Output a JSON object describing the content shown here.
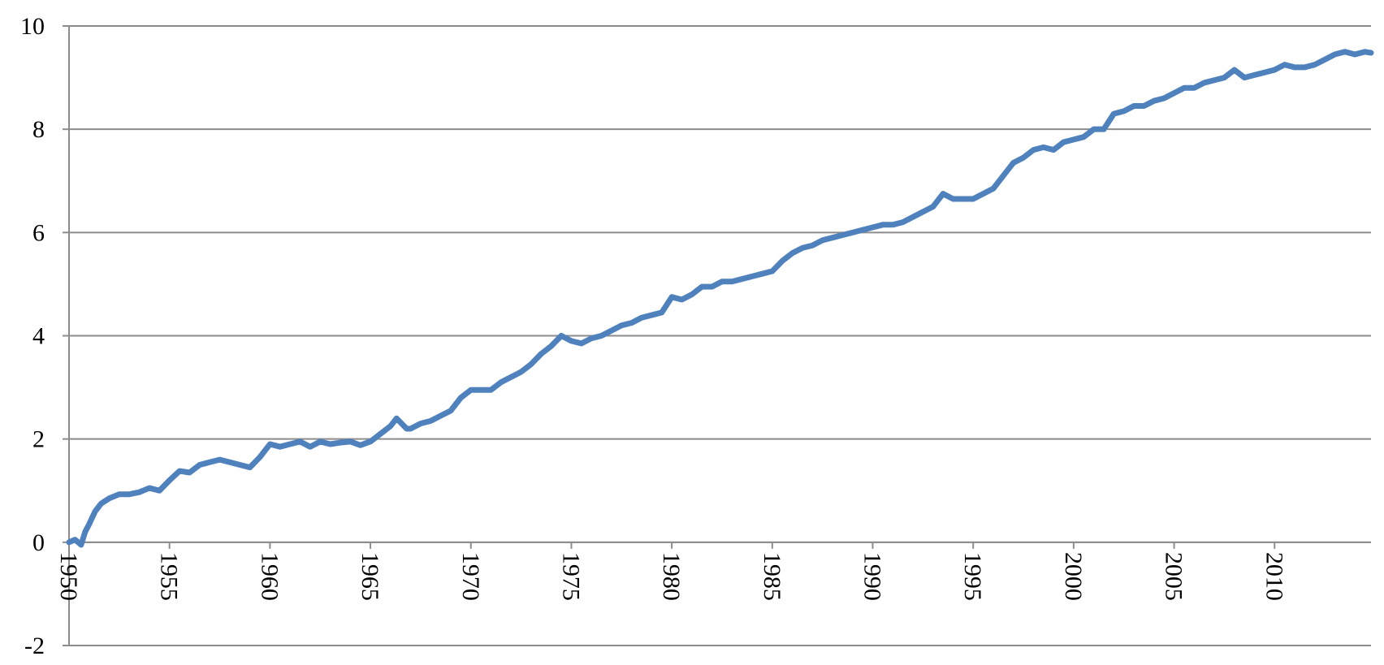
{
  "chart_data": {
    "type": "line",
    "x": [
      1950,
      1950.3,
      1950.6,
      1950.8,
      1951,
      1951.3,
      1951.6,
      1952,
      1952.5,
      1953,
      1953.5,
      1954,
      1954.5,
      1955,
      1955.5,
      1956,
      1956.5,
      1957,
      1957.5,
      1958,
      1958.5,
      1959,
      1959.5,
      1960,
      1960.5,
      1961,
      1961.5,
      1962,
      1962.5,
      1963,
      1963.5,
      1964,
      1964.5,
      1965,
      1965.5,
      1966,
      1966.3,
      1966.8,
      1967,
      1967.5,
      1968,
      1968.5,
      1969,
      1969.5,
      1970,
      1970.5,
      1971,
      1971.5,
      1972,
      1972.5,
      1973,
      1973.5,
      1974,
      1974.5,
      1975,
      1975.5,
      1976,
      1976.5,
      1977,
      1977.5,
      1978,
      1978.5,
      1979,
      1979.5,
      1980,
      1980.5,
      1981,
      1981.5,
      1982,
      1982.5,
      1983,
      1983.5,
      1984,
      1984.5,
      1985,
      1985.5,
      1986,
      1986.5,
      1987,
      1987.5,
      1988,
      1988.5,
      1989,
      1989.5,
      1990,
      1990.5,
      1991,
      1991.5,
      1992,
      1992.5,
      1993,
      1993.5,
      1994,
      1994.5,
      1995,
      1995.5,
      1996,
      1996.5,
      1997,
      1997.5,
      1998,
      1998.5,
      1999,
      1999.5,
      2000,
      2000.5,
      2001,
      2001.5,
      2002,
      2002.5,
      2003,
      2003.5,
      2004,
      2004.5,
      2005,
      2005.5,
      2006,
      2006.5,
      2007,
      2007.5,
      2008,
      2008.5,
      2009,
      2009.5,
      2010,
      2010.5,
      2011,
      2011.5,
      2012,
      2012.5,
      2013,
      2013.5,
      2014,
      2014.5,
      2014.8
    ],
    "series": [
      {
        "color": "#4f81bd",
        "values": [
          0,
          0.05,
          -0.05,
          0.2,
          0.35,
          0.6,
          0.75,
          0.85,
          0.93,
          0.93,
          0.97,
          1.05,
          1.0,
          1.2,
          1.38,
          1.35,
          1.5,
          1.55,
          1.6,
          1.55,
          1.5,
          1.45,
          1.65,
          1.9,
          1.85,
          1.9,
          1.95,
          1.85,
          1.95,
          1.9,
          1.93,
          1.95,
          1.88,
          1.95,
          2.1,
          2.25,
          2.4,
          2.2,
          2.2,
          2.3,
          2.35,
          2.45,
          2.55,
          2.8,
          2.95,
          2.95,
          2.95,
          3.1,
          3.2,
          3.3,
          3.45,
          3.65,
          3.8,
          4.0,
          3.9,
          3.85,
          3.95,
          4.0,
          4.1,
          4.2,
          4.25,
          4.35,
          4.4,
          4.45,
          4.75,
          4.7,
          4.8,
          4.95,
          4.95,
          5.05,
          5.05,
          5.1,
          5.15,
          5.2,
          5.25,
          5.45,
          5.6,
          5.7,
          5.75,
          5.85,
          5.9,
          5.95,
          6.0,
          6.05,
          6.1,
          6.15,
          6.15,
          6.2,
          6.3,
          6.4,
          6.5,
          6.75,
          6.65,
          6.65,
          6.65,
          6.75,
          6.85,
          7.1,
          7.35,
          7.45,
          7.6,
          7.65,
          7.6,
          7.75,
          7.8,
          7.85,
          8.0,
          8.0,
          8.3,
          8.35,
          8.45,
          8.45,
          8.55,
          8.6,
          8.7,
          8.8,
          8.8,
          8.9,
          8.95,
          9.0,
          9.15,
          9.0,
          9.05,
          9.1,
          9.15,
          9.25,
          9.2,
          9.2,
          9.25,
          9.35,
          9.45,
          9.5,
          9.45,
          9.5,
          9.48
        ]
      }
    ],
    "xlim": [
      1950,
      2014.8
    ],
    "xticks": [
      1950,
      1955,
      1960,
      1965,
      1970,
      1975,
      1980,
      1985,
      1990,
      1995,
      2000,
      2005,
      2010
    ],
    "ylim": [
      -2,
      10
    ],
    "yticks": [
      -2,
      0,
      2,
      4,
      6,
      8,
      10
    ],
    "grid": true
  }
}
